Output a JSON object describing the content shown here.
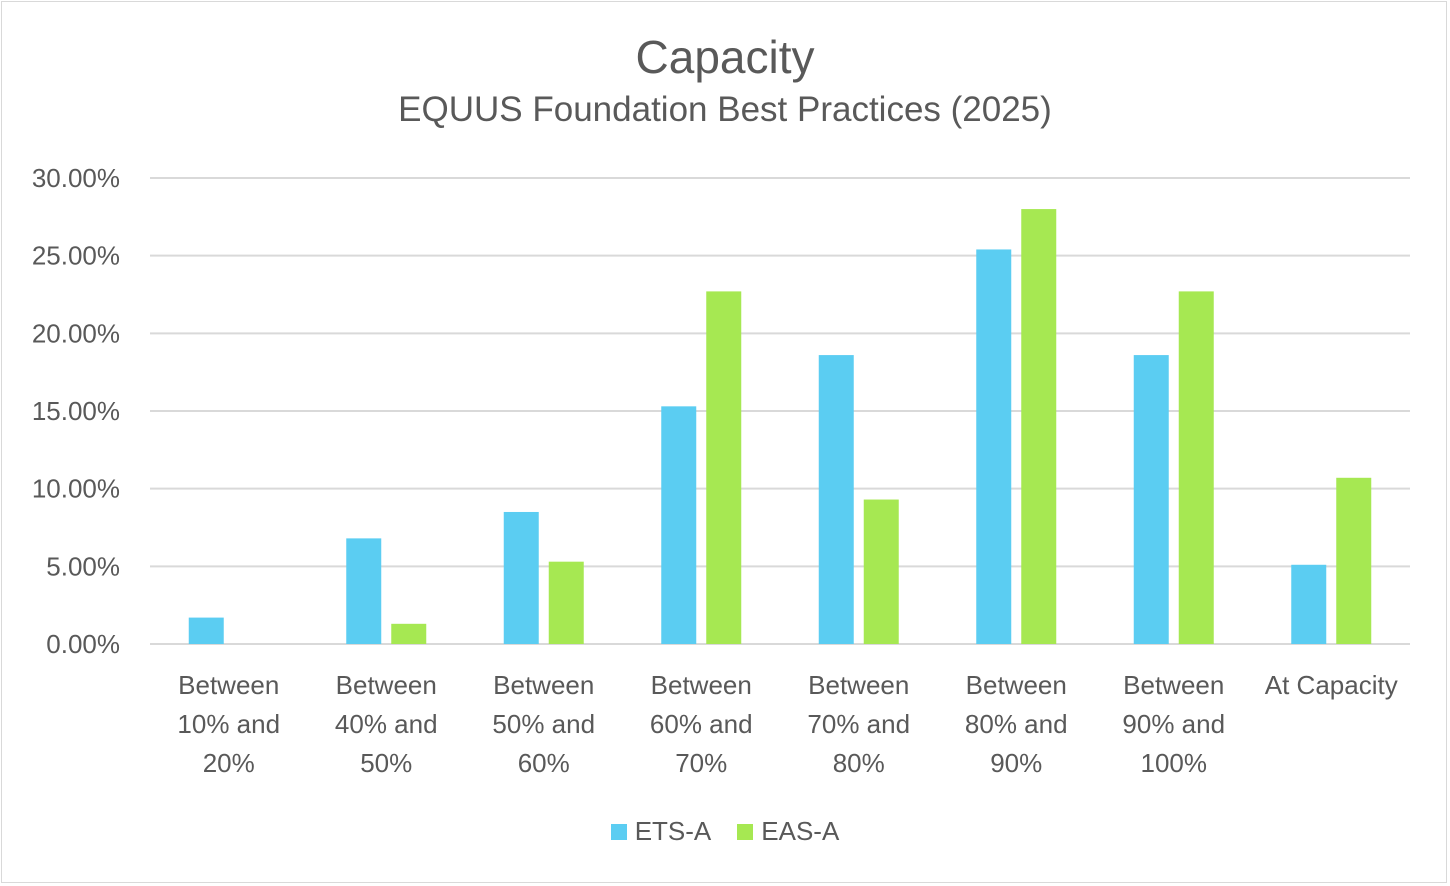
{
  "chart_data": {
    "type": "bar",
    "title": "Capacity",
    "subtitle": "EQUUS Foundation Best Practices (2025)",
    "xlabel": "",
    "ylabel": "",
    "ylim": [
      0,
      30
    ],
    "yticks": [
      "0.00%",
      "5.00%",
      "10.00%",
      "15.00%",
      "20.00%",
      "25.00%",
      "30.00%"
    ],
    "grid": true,
    "legend_position": "bottom",
    "categories": [
      "Between 10% and 20%",
      "Between 40% and 50%",
      "Between 50% and 60%",
      "Between 60% and 70%",
      "Between 70% and 80%",
      "Between 80% and 90%",
      "Between 90% and 100%",
      "At Capacity"
    ],
    "series": [
      {
        "name": "ETS-A",
        "color": "#5BCDF2",
        "values": [
          1.7,
          6.8,
          8.5,
          15.3,
          18.6,
          25.4,
          18.6,
          5.1
        ]
      },
      {
        "name": "EAS-A",
        "color": "#A6E852",
        "values": [
          0,
          1.3,
          5.3,
          22.7,
          9.3,
          28.0,
          22.7,
          10.7
        ]
      }
    ]
  }
}
